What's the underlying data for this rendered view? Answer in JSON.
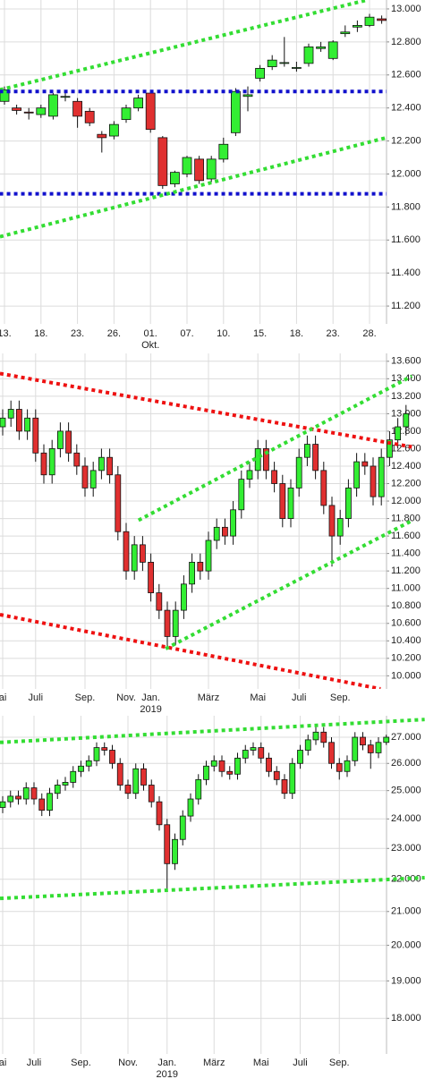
{
  "chart_data": [
    {
      "type": "candlestick",
      "categories": [
        "13.",
        null,
        null,
        "18.",
        null,
        null,
        "23.",
        null,
        null,
        "26.",
        null,
        null,
        "01.",
        null,
        null,
        "07.",
        null,
        null,
        "10.",
        null,
        null,
        "15.",
        null,
        null,
        "18.",
        null,
        null,
        "23.",
        null,
        null,
        "28.",
        null
      ],
      "x_sublabels": [
        null,
        null,
        null,
        null,
        null,
        null,
        null,
        null,
        null,
        null,
        null,
        null,
        "Okt.",
        null,
        null,
        null,
        null,
        null,
        null,
        null,
        null,
        null,
        null,
        null,
        null,
        null,
        null,
        null,
        null,
        null,
        null,
        null
      ],
      "open": [
        12440,
        12400,
        12375,
        12360,
        12350,
        12465,
        12440,
        12380,
        12240,
        12230,
        12330,
        12400,
        12490,
        12220,
        11940,
        12000,
        12090,
        11970,
        12090,
        12250,
        12470,
        12580,
        12650,
        12670,
        12640,
        12670,
        12760,
        12700,
        12850,
        12890,
        12900,
        12940
      ],
      "high": [
        12530,
        12420,
        12400,
        12420,
        12490,
        12500,
        12460,
        12400,
        12260,
        12320,
        12420,
        12480,
        12500,
        12230,
        12020,
        12110,
        12110,
        12110,
        12220,
        12520,
        12530,
        12660,
        12720,
        12830,
        12680,
        12790,
        12800,
        12810,
        12900,
        12930,
        12970,
        12960
      ],
      "low": [
        12420,
        12360,
        12330,
        12340,
        12330,
        12440,
        12280,
        12290,
        12130,
        12210,
        12310,
        12380,
        12250,
        11910,
        11920,
        11980,
        11940,
        11950,
        12070,
        12230,
        12380,
        12560,
        12630,
        12650,
        12620,
        12650,
        12740,
        12690,
        12830,
        12860,
        12890,
        12910
      ],
      "close": [
        12510,
        12385,
        12370,
        12400,
        12480,
        12470,
        12350,
        12310,
        12220,
        12300,
        12400,
        12460,
        12270,
        11930,
        12010,
        12100,
        11960,
        12090,
        12180,
        12500,
        12480,
        12640,
        12690,
        12675,
        12645,
        12770,
        12770,
        12800,
        12860,
        12900,
        12950,
        12930
      ],
      "up_color": "#33ee33",
      "down_color": "#e03030",
      "ylim": [
        11092,
        13054
      ],
      "yticks": [
        {
          "value": 13000,
          "label": "13.000"
        },
        {
          "value": 12800,
          "label": "12.800"
        },
        {
          "value": 12600,
          "label": "12.600"
        },
        {
          "value": 12400,
          "label": "12.400"
        },
        {
          "value": 12200,
          "label": "12.200"
        },
        {
          "value": 12000,
          "label": "12.000"
        },
        {
          "value": 11800,
          "label": "11.800"
        },
        {
          "value": 11600,
          "label": "11.600"
        },
        {
          "value": 11400,
          "label": "11.400"
        },
        {
          "value": 11200,
          "label": "11.200"
        }
      ],
      "log_scale": false,
      "grid": true,
      "trendlines": [
        {
          "color": "#33dd33",
          "from": [
            -0.37,
            12510
          ],
          "to": [
            29.8,
            13054
          ]
        },
        {
          "color": "#1111cc",
          "from": [
            -0.4,
            12500
          ],
          "to": [
            31.4,
            12500
          ]
        },
        {
          "color": "#1111cc",
          "from": [
            -0.4,
            11880
          ],
          "to": [
            31.4,
            11880
          ]
        },
        {
          "color": "#33dd33",
          "from": [
            -0.37,
            11620
          ],
          "to": [
            31.4,
            12220
          ]
        }
      ]
    },
    {
      "type": "candlestick",
      "categories": [
        "ai",
        null,
        null,
        null,
        "Juli",
        null,
        null,
        null,
        null,
        null,
        "Sep.",
        null,
        null,
        null,
        null,
        "Nov.",
        null,
        null,
        "Jan.",
        null,
        null,
        null,
        null,
        null,
        null,
        "März",
        null,
        null,
        null,
        null,
        null,
        "Mai",
        null,
        null,
        null,
        null,
        "Juli",
        null,
        null,
        null,
        null,
        "Sep.",
        null,
        null,
        null,
        null,
        null,
        null,
        null,
        null
      ],
      "x_sublabels": [
        null,
        null,
        null,
        null,
        null,
        null,
        null,
        null,
        null,
        null,
        null,
        null,
        null,
        null,
        null,
        null,
        null,
        null,
        "2019",
        null,
        null,
        null,
        null,
        null,
        null,
        null,
        null,
        null,
        null,
        null,
        null,
        null,
        null,
        null,
        null,
        null,
        null,
        null,
        null,
        null,
        null,
        null,
        null,
        null,
        null,
        null,
        null,
        null,
        null,
        null
      ],
      "open": [
        12850,
        12950,
        13050,
        12800,
        12950,
        12550,
        12300,
        12600,
        12800,
        12550,
        12400,
        12150,
        12350,
        12500,
        12300,
        11650,
        11200,
        11500,
        11300,
        10950,
        10750,
        10450,
        10750,
        11050,
        11300,
        11200,
        11550,
        11700,
        11600,
        11900,
        12250,
        12350,
        12600,
        12350,
        12200,
        11800,
        12150,
        12500,
        12650,
        12350,
        11950,
        11600,
        11800,
        12150,
        12450,
        12400,
        12050,
        12500,
        12700,
        12850
      ],
      "high": [
        13050,
        13150,
        13150,
        13050,
        13050,
        12650,
        12700,
        12900,
        12900,
        12650,
        12500,
        12450,
        12600,
        12600,
        12400,
        11750,
        11600,
        11600,
        11400,
        11050,
        10850,
        10850,
        11150,
        11400,
        11400,
        11650,
        11800,
        11800,
        12000,
        12350,
        12450,
        12700,
        12700,
        12450,
        12300,
        12250,
        12600,
        12750,
        12750,
        12450,
        12050,
        11900,
        12250,
        12550,
        12550,
        12500,
        12600,
        12800,
        12950,
        13100
      ],
      "low": [
        12750,
        12850,
        12700,
        12700,
        12450,
        12200,
        12200,
        12500,
        12450,
        12300,
        12050,
        12050,
        12250,
        12200,
        11550,
        11100,
        11100,
        11200,
        10850,
        10650,
        10300,
        10350,
        10650,
        10950,
        11100,
        11100,
        11450,
        11500,
        11500,
        11800,
        12150,
        12250,
        12250,
        12100,
        11700,
        11700,
        12050,
        12400,
        12250,
        11850,
        11250,
        11500,
        11700,
        12050,
        12300,
        11950,
        11950,
        12400,
        12600,
        12750
      ],
      "close": [
        12950,
        13050,
        12800,
        12950,
        12550,
        12300,
        12600,
        12800,
        12550,
        12400,
        12150,
        12350,
        12500,
        12300,
        11650,
        11200,
        11500,
        11300,
        10950,
        10750,
        10450,
        10750,
        11050,
        11300,
        11200,
        11550,
        11700,
        11600,
        11900,
        12250,
        12350,
        12600,
        12350,
        12200,
        11800,
        12150,
        12500,
        12650,
        12350,
        11950,
        11600,
        11800,
        12150,
        12450,
        12400,
        12050,
        12500,
        12700,
        12850,
        13000
      ],
      "up_color": "#33ee33",
      "down_color": "#e03030",
      "ylim": [
        9850,
        13690
      ],
      "yticks": [
        {
          "value": 13600,
          "label": "13.600"
        },
        {
          "value": 13400,
          "label": "13.400"
        },
        {
          "value": 13200,
          "label": "13.200"
        },
        {
          "value": 13000,
          "label": "13.000"
        },
        {
          "value": 12800,
          "label": "12.800"
        },
        {
          "value": 12600,
          "label": "12.600"
        },
        {
          "value": 12400,
          "label": "12.400"
        },
        {
          "value": 12200,
          "label": "12.200"
        },
        {
          "value": 12000,
          "label": "12.000"
        },
        {
          "value": 11800,
          "label": "11.800"
        },
        {
          "value": 11600,
          "label": "11.600"
        },
        {
          "value": 11400,
          "label": "11.400"
        },
        {
          "value": 11200,
          "label": "11.200"
        },
        {
          "value": 11000,
          "label": "11.000"
        },
        {
          "value": 10800,
          "label": "10.800"
        },
        {
          "value": 10600,
          "label": "10.600"
        },
        {
          "value": 10400,
          "label": "10.400"
        },
        {
          "value": 10200,
          "label": "10.200"
        },
        {
          "value": 10000,
          "label": "10.000"
        }
      ],
      "log_scale": false,
      "grid": true,
      "trendlines": [
        {
          "color": "#ee1111",
          "from": [
            -0.33,
            13460
          ],
          "to": [
            49.7,
            12620
          ]
        },
        {
          "color": "#ee1111",
          "from": [
            -0.33,
            10700
          ],
          "to": [
            45.9,
            9850
          ]
        },
        {
          "color": "#33dd33",
          "from": [
            16.5,
            11780
          ],
          "to": [
            49.7,
            13430
          ]
        },
        {
          "color": "#33dd33",
          "from": [
            19.8,
            10310
          ],
          "to": [
            49.7,
            11775
          ]
        }
      ]
    },
    {
      "type": "candlestick",
      "categories": [
        "ai",
        null,
        null,
        null,
        "Juli",
        null,
        null,
        null,
        null,
        null,
        "Sep.",
        null,
        null,
        null,
        null,
        null,
        "Nov.",
        null,
        null,
        null,
        null,
        "Jan.",
        null,
        null,
        null,
        null,
        null,
        "März",
        null,
        null,
        null,
        null,
        null,
        "Mai",
        null,
        null,
        null,
        null,
        "Juli",
        null,
        null,
        null,
        null,
        "Sep.",
        null,
        null,
        null,
        null,
        null,
        null
      ],
      "x_sublabels": [
        null,
        null,
        null,
        null,
        null,
        null,
        null,
        null,
        null,
        null,
        null,
        null,
        null,
        null,
        null,
        null,
        null,
        null,
        null,
        null,
        null,
        "2019",
        null,
        null,
        null,
        null,
        null,
        null,
        null,
        null,
        null,
        null,
        null,
        null,
        null,
        null,
        null,
        null,
        null,
        null,
        null,
        null,
        null,
        null,
        null,
        null,
        null,
        null,
        null,
        null
      ],
      "open": [
        24400,
        24600,
        24800,
        24700,
        25100,
        24700,
        24300,
        24900,
        25200,
        25300,
        25700,
        25900,
        26100,
        26600,
        26500,
        26000,
        25200,
        24900,
        25800,
        25200,
        24600,
        23800,
        22500,
        23300,
        24100,
        24700,
        25400,
        25900,
        26100,
        25700,
        25600,
        26200,
        26500,
        26600,
        26200,
        25700,
        25400,
        24900,
        26000,
        26500,
        26900,
        27200,
        26800,
        26000,
        25700,
        26100,
        27000,
        26700,
        26400,
        26800
      ],
      "high": [
        24800,
        25000,
        25000,
        25300,
        25300,
        24900,
        25100,
        25400,
        25500,
        25900,
        26100,
        26300,
        26800,
        26800,
        26700,
        26200,
        25400,
        26000,
        26000,
        25400,
        24800,
        24000,
        23500,
        24300,
        24900,
        25600,
        26100,
        26300,
        26300,
        25900,
        26400,
        26700,
        26800,
        26800,
        26400,
        25900,
        25600,
        26200,
        26700,
        27100,
        27400,
        27400,
        27000,
        26200,
        26300,
        27200,
        27200,
        26900,
        27000,
        27100
      ],
      "low": [
        24200,
        24400,
        24500,
        24500,
        24500,
        24100,
        24100,
        24700,
        25000,
        25100,
        25500,
        25700,
        25900,
        26300,
        25800,
        25000,
        24700,
        24700,
        25000,
        24400,
        23600,
        21700,
        22300,
        23100,
        23900,
        24500,
        25200,
        25700,
        25500,
        25400,
        25400,
        26000,
        26300,
        26000,
        25500,
        25200,
        24700,
        24700,
        25800,
        26300,
        26700,
        26600,
        25800,
        25400,
        25500,
        25900,
        26500,
        25800,
        26200,
        26700
      ],
      "close": [
        24600,
        24800,
        24700,
        25100,
        24700,
        24300,
        24900,
        25200,
        25300,
        25700,
        25900,
        26100,
        26600,
        26500,
        26000,
        25200,
        24900,
        25800,
        25200,
        24600,
        23800,
        22500,
        23300,
        24100,
        24700,
        25400,
        25900,
        26100,
        25700,
        25600,
        26200,
        26500,
        26600,
        26200,
        25700,
        25400,
        24900,
        26000,
        26500,
        26900,
        27200,
        26800,
        26000,
        25700,
        26100,
        27000,
        26700,
        26400,
        26800,
        27000
      ],
      "up_color": "#33ee33",
      "down_color": "#e03030",
      "ylim": [
        17100,
        27850
      ],
      "yticks": [
        {
          "value": 27000,
          "label": "27.000"
        },
        {
          "value": 26000,
          "label": "26.000"
        },
        {
          "value": 25000,
          "label": "25.000"
        },
        {
          "value": 24000,
          "label": "24.000"
        },
        {
          "value": 23000,
          "label": "23.000"
        },
        {
          "value": 22000,
          "label": "22.000"
        },
        {
          "value": 21000,
          "label": "21.000"
        },
        {
          "value": 20000,
          "label": "20.000"
        },
        {
          "value": 19000,
          "label": "19.000"
        },
        {
          "value": 18000,
          "label": "18.000"
        }
      ],
      "log_scale": true,
      "grid": true,
      "trendlines": [
        {
          "color": "#33dd33",
          "from": [
            -0.34,
            26800
          ],
          "to": [
            53.9,
            27700
          ]
        },
        {
          "color": "#33dd33",
          "from": [
            -0.34,
            21400
          ],
          "to": [
            53.9,
            22050
          ]
        }
      ]
    }
  ]
}
